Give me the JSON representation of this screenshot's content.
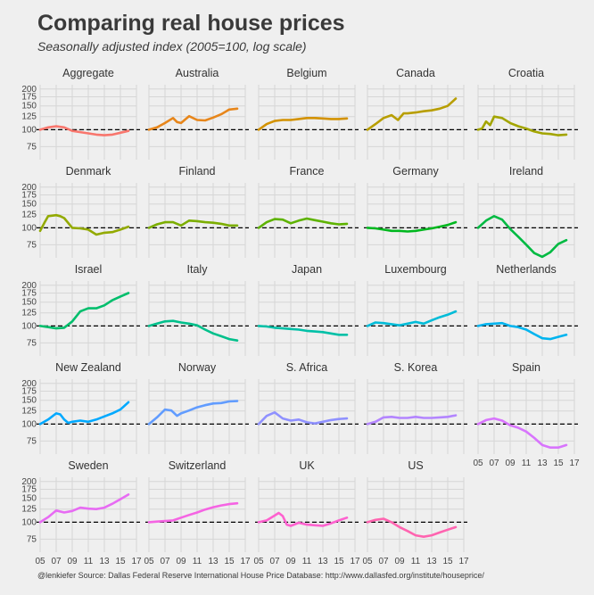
{
  "chart_data": {
    "type": "line",
    "title": "Comparing real house prices",
    "subtitle": "Seasonally adjusted index (2005=100, log scale)",
    "y_scale": "log",
    "y_ticks": [
      75,
      100,
      125,
      150,
      175,
      200
    ],
    "x_ticks": [
      "05",
      "07",
      "09",
      "11",
      "13",
      "15",
      "17"
    ],
    "x_range": [
      2005,
      2017
    ],
    "reference_line": 100,
    "grid": true,
    "caption": "@lenkiefer Source: Dallas Federal Reserve International House Price Database: http://www.dallasfed.org/institute/houseprice/",
    "panels": [
      {
        "name": "Aggregate",
        "color": "#f8766d",
        "x": [
          2005,
          2006,
          2007,
          2008,
          2009,
          2010,
          2011,
          2012,
          2013,
          2014,
          2015,
          2016
        ],
        "values": [
          100,
          104,
          106,
          104,
          98,
          96,
          94,
          92,
          91,
          92,
          95,
          98
        ]
      },
      {
        "name": "Australia",
        "color": "#e7861b",
        "x": [
          2005,
          2006,
          2007,
          2008,
          2008.5,
          2009,
          2010,
          2011,
          2012,
          2013,
          2014,
          2015,
          2016
        ],
        "values": [
          100,
          104,
          112,
          122,
          114,
          112,
          126,
          118,
          117,
          123,
          130,
          141,
          143
        ]
      },
      {
        "name": "Belgium",
        "color": "#d39200",
        "x": [
          2005,
          2006,
          2007,
          2008,
          2009,
          2010,
          2011,
          2012,
          2013,
          2014,
          2015,
          2016
        ],
        "values": [
          100,
          110,
          116,
          118,
          118,
          120,
          122,
          122,
          121,
          120,
          120,
          121
        ]
      },
      {
        "name": "Canada",
        "color": "#b89e00",
        "x": [
          2005,
          2006,
          2007,
          2008,
          2008.8,
          2009.5,
          2010,
          2011,
          2012,
          2013,
          2014,
          2015,
          2016
        ],
        "values": [
          100,
          110,
          122,
          128,
          118,
          132,
          132,
          134,
          137,
          139,
          143,
          150,
          170
        ]
      },
      {
        "name": "Croatia",
        "color": "#a3a500",
        "x": [
          2005,
          2005.5,
          2006,
          2006.5,
          2007,
          2008,
          2009,
          2010,
          2011,
          2012,
          2013,
          2014,
          2015,
          2016
        ],
        "values": [
          100,
          102,
          115,
          108,
          125,
          122,
          112,
          106,
          102,
          97,
          94,
          93,
          91,
          92
        ]
      },
      {
        "name": "Denmark",
        "color": "#93aa00",
        "x": [
          2005,
          2005.5,
          2006,
          2007,
          2007.5,
          2008,
          2009,
          2010,
          2011,
          2012,
          2013,
          2014,
          2015,
          2016
        ],
        "values": [
          95,
          108,
          122,
          124,
          122,
          118,
          100,
          99,
          97,
          89,
          92,
          93,
          97,
          102
        ]
      },
      {
        "name": "Finland",
        "color": "#7cae00",
        "x": [
          2005,
          2006,
          2007,
          2008,
          2009,
          2010,
          2011,
          2012,
          2013,
          2014,
          2015,
          2016
        ],
        "values": [
          100,
          106,
          110,
          110,
          104,
          113,
          112,
          110,
          109,
          107,
          104,
          104
        ]
      },
      {
        "name": "France",
        "color": "#5eb300",
        "x": [
          2005,
          2006,
          2007,
          2008,
          2009,
          2010,
          2011,
          2012,
          2013,
          2014,
          2015,
          2016
        ],
        "values": [
          100,
          110,
          116,
          115,
          108,
          113,
          117,
          114,
          111,
          108,
          106,
          107
        ]
      },
      {
        "name": "Germany",
        "color": "#00b81f",
        "x": [
          2005,
          2006,
          2007,
          2008,
          2009,
          2010,
          2011,
          2012,
          2013,
          2014,
          2015,
          2016
        ],
        "values": [
          100,
          99,
          97,
          95,
          95,
          94,
          95,
          97,
          99,
          102,
          105,
          110
        ]
      },
      {
        "name": "Ireland",
        "color": "#00ba42",
        "x": [
          2005,
          2006,
          2007,
          2008,
          2009,
          2010,
          2011,
          2012,
          2013,
          2014,
          2015,
          2016
        ],
        "values": [
          100,
          113,
          122,
          115,
          98,
          86,
          75,
          65,
          61,
          66,
          76,
          81
        ]
      },
      {
        "name": "Israel",
        "color": "#00be6c",
        "x": [
          2005,
          2006,
          2007,
          2008,
          2009,
          2010,
          2011,
          2012,
          2013,
          2014,
          2015,
          2016
        ],
        "values": [
          100,
          98,
          96,
          97,
          108,
          128,
          135,
          135,
          142,
          155,
          165,
          175
        ]
      },
      {
        "name": "Italy",
        "color": "#00c08b",
        "x": [
          2005,
          2006,
          2007,
          2008,
          2009,
          2010,
          2011,
          2012,
          2013,
          2014,
          2015,
          2016
        ],
        "values": [
          100,
          104,
          108,
          109,
          106,
          104,
          101,
          94,
          88,
          84,
          80,
          78
        ]
      },
      {
        "name": "Japan",
        "color": "#00c0a7",
        "x": [
          2005,
          2006,
          2007,
          2008,
          2009,
          2010,
          2011,
          2012,
          2013,
          2014,
          2015,
          2016
        ],
        "values": [
          100,
          99,
          97,
          96,
          95,
          94,
          92,
          91,
          90,
          88,
          86,
          86
        ]
      },
      {
        "name": "Luxembourg",
        "color": "#00bcd8",
        "x": [
          2005,
          2006,
          2007,
          2008,
          2009,
          2010,
          2011,
          2012,
          2013,
          2014,
          2015,
          2016
        ],
        "values": [
          100,
          106,
          105,
          103,
          101,
          104,
          107,
          104,
          110,
          116,
          121,
          128
        ]
      },
      {
        "name": "Netherlands",
        "color": "#00b4ef",
        "x": [
          2005,
          2006,
          2007,
          2008,
          2009,
          2010,
          2011,
          2012,
          2013,
          2014,
          2015,
          2016
        ],
        "values": [
          100,
          103,
          104,
          105,
          100,
          98,
          94,
          87,
          81,
          80,
          83,
          86
        ]
      },
      {
        "name": "New Zealand",
        "color": "#00a9ff",
        "x": [
          2005,
          2006,
          2007,
          2007.5,
          2008,
          2008.5,
          2009,
          2010,
          2011,
          2012,
          2013,
          2014,
          2015,
          2016
        ],
        "values": [
          100,
          108,
          120,
          118,
          108,
          102,
          104,
          106,
          104,
          108,
          114,
          120,
          128,
          145
        ]
      },
      {
        "name": "Norway",
        "color": "#619cff",
        "x": [
          2005,
          2006,
          2007,
          2007.8,
          2008.5,
          2009,
          2010,
          2011,
          2012,
          2013,
          2014,
          2015,
          2016
        ],
        "values": [
          100,
          112,
          128,
          126,
          115,
          120,
          126,
          133,
          138,
          142,
          143,
          147,
          148
        ]
      },
      {
        "name": "S. Africa",
        "color": "#8f91ff",
        "x": [
          2005,
          2006,
          2007,
          2008,
          2009,
          2010,
          2011,
          2012,
          2013,
          2014,
          2015,
          2016
        ],
        "values": [
          100,
          115,
          122,
          110,
          106,
          108,
          103,
          101,
          104,
          107,
          109,
          110
        ]
      },
      {
        "name": "S. Korea",
        "color": "#b385ff",
        "x": [
          2005,
          2006,
          2007,
          2008,
          2009,
          2010,
          2011,
          2012,
          2013,
          2014,
          2015,
          2016
        ],
        "values": [
          100,
          104,
          112,
          113,
          111,
          111,
          113,
          111,
          111,
          112,
          113,
          116
        ]
      },
      {
        "name": "Spain",
        "color": "#d874fd",
        "x": [
          2005,
          2006,
          2007,
          2008,
          2009,
          2010,
          2011,
          2012,
          2013,
          2014,
          2015,
          2016
        ],
        "values": [
          100,
          107,
          110,
          106,
          98,
          94,
          88,
          79,
          70,
          67,
          67,
          70
        ]
      },
      {
        "name": "Sweden",
        "color": "#e76bf3",
        "x": [
          2005,
          2006,
          2007,
          2008,
          2009,
          2010,
          2011,
          2012,
          2013,
          2014,
          2015,
          2016
        ],
        "values": [
          100,
          109,
          122,
          118,
          121,
          128,
          126,
          125,
          128,
          137,
          148,
          160
        ]
      },
      {
        "name": "Switzerland",
        "color": "#f564e3",
        "x": [
          2005,
          2006,
          2007,
          2008,
          2009,
          2010,
          2011,
          2012,
          2013,
          2014,
          2015,
          2016
        ],
        "values": [
          100,
          101,
          102,
          103,
          108,
          113,
          118,
          124,
          129,
          133,
          136,
          138
        ]
      },
      {
        "name": "UK",
        "color": "#fe61cf",
        "x": [
          2005,
          2006,
          2007,
          2007.5,
          2008,
          2008.5,
          2009,
          2010,
          2011,
          2012,
          2013,
          2014,
          2015,
          2016
        ],
        "values": [
          100,
          103,
          112,
          117,
          111,
          96,
          94,
          99,
          96,
          95,
          94,
          98,
          103,
          108
        ]
      },
      {
        "name": "US",
        "color": "#ff64b0",
        "x": [
          2005,
          2006,
          2007,
          2008,
          2009,
          2010,
          2011,
          2012,
          2013,
          2014,
          2015,
          2016
        ],
        "values": [
          100,
          104,
          106,
          100,
          92,
          86,
          80,
          78,
          80,
          84,
          88,
          92
        ]
      }
    ]
  }
}
